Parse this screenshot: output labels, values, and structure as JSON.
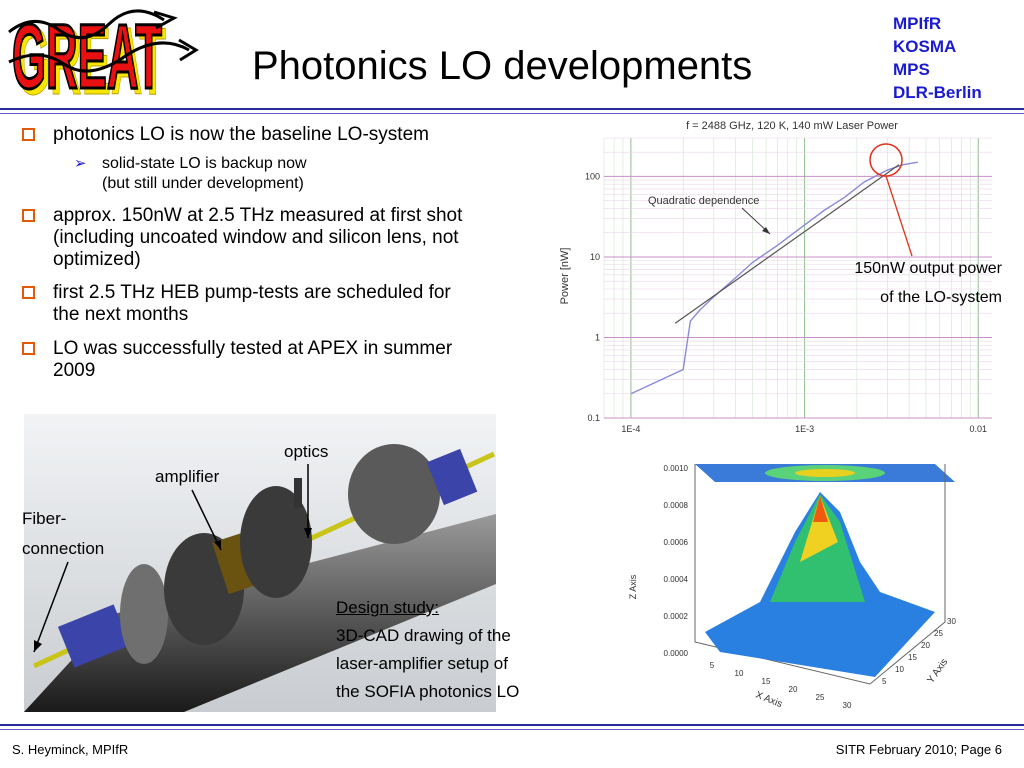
{
  "logo": {
    "text": "GREAT"
  },
  "title": "Photonics LO developments",
  "institutions": [
    "MPIfR",
    "KOSMA",
    "MPS",
    "DLR-Berlin"
  ],
  "bullets": [
    {
      "text": "photonics LO is now the baseline LO-system",
      "sub": [
        "solid-state LO is backup now",
        "(but still under development)"
      ]
    },
    {
      "lines": [
        "approx. 150nW at 2.5 THz measured at first shot",
        "(including uncoated window and silicon lens, not",
        "optimized)"
      ]
    },
    {
      "lines": [
        "first 2.5 THz HEB pump-tests are scheduled for",
        "the next months"
      ]
    },
    {
      "lines": [
        "LO was successfully tested at APEX in summer",
        "2009"
      ]
    }
  ],
  "cad": {
    "labels": {
      "optics": "optics",
      "amplifier": "amplifier",
      "fiber1": "Fiber-",
      "fiber2": "connection"
    },
    "caption": [
      "Design study:",
      "3D-CAD drawing of the",
      "laser-amplifier setup of",
      "the SOFIA photonics LO"
    ]
  },
  "power_annotation": [
    "150nW output power",
    "of the LO-system"
  ],
  "chart_data": [
    {
      "type": "line",
      "title": "f = 2488 GHz, 120 K, 140 mW Laser Power",
      "ylabel": "Power [nW]",
      "xlabel": "",
      "xscale": "log",
      "yscale": "log",
      "xlim": [
        7e-05,
        0.012
      ],
      "ylim": [
        0.1,
        300
      ],
      "xticks": [
        "1E-4",
        "1E-3",
        "0.01"
      ],
      "yticks": [
        "0.1",
        "1",
        "10",
        "100"
      ],
      "grid": true,
      "annotation": "Quadratic dependence",
      "series": [
        {
          "x": [
            0.0001,
            0.0002,
            0.00022,
            0.00025,
            0.0003,
            0.0004,
            0.0005,
            0.0007,
            0.001,
            0.0013,
            0.0017,
            0.0022,
            0.003,
            0.0037,
            0.0045
          ],
          "y": [
            0.2,
            0.4,
            1.6,
            2.2,
            3.2,
            5.5,
            8.5,
            14,
            25,
            38,
            55,
            85,
            120,
            140,
            150
          ],
          "color": "#8a8ad8"
        },
        {
          "x": [
            0.00018,
            0.0035
          ],
          "y": [
            1.5,
            140
          ],
          "color": "#555555"
        }
      ]
    },
    {
      "type": "surface",
      "xlabel": "X Axis",
      "ylabel": "Y Axis",
      "zlabel": "Z Axis",
      "zticks": [
        "0.0000",
        "0.0002",
        "0.0004",
        "0.0006",
        "0.0008",
        "0.0010"
      ],
      "xticks": [
        "5",
        "10",
        "15",
        "20",
        "25",
        "30"
      ],
      "yticks": [
        "5",
        "10",
        "15",
        "20",
        "25",
        "30"
      ],
      "peak": 0.001
    }
  ],
  "footer": {
    "left": "S. Heyminck, MPIfR",
    "right": "SITR February 2010; Page 6"
  },
  "colors": {
    "accent": "#1a1ad0",
    "bullet": "#e05a0a",
    "rule": "#2a2a9a"
  }
}
